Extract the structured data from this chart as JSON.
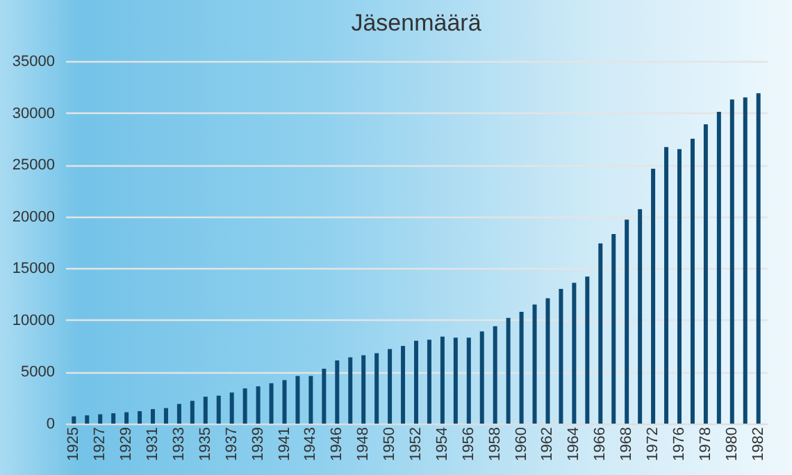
{
  "chart_data": {
    "type": "bar",
    "title": "Jäsenmäärä",
    "categories": [
      "1925",
      null,
      "1927",
      null,
      "1929",
      null,
      "1931",
      null,
      "1933",
      null,
      "1935",
      null,
      "1937",
      null,
      "1939",
      null,
      "1941",
      null,
      "1943",
      null,
      "1946",
      null,
      "1948",
      null,
      "1950",
      null,
      "1952",
      null,
      "1954",
      null,
      "1956",
      null,
      "1958",
      null,
      "1960",
      null,
      "1962",
      null,
      "1964",
      null,
      "1966",
      null,
      "1968",
      null,
      "1972",
      null,
      "1976",
      null,
      "1978",
      null,
      "1980",
      null,
      "1982"
    ],
    "values": [
      700,
      800,
      900,
      1000,
      1100,
      1200,
      1400,
      1500,
      1900,
      2200,
      2600,
      2700,
      3000,
      3400,
      3600,
      3900,
      4200,
      4600,
      4600,
      5300,
      6100,
      6400,
      6600,
      6800,
      7200,
      7500,
      8000,
      8100,
      8400,
      8300,
      8300,
      8900,
      9400,
      10200,
      10800,
      11500,
      12100,
      13000,
      13600,
      14200,
      17400,
      18300,
      19700,
      20700,
      24600,
      26700,
      26500,
      27500,
      28900,
      30100,
      31300,
      31500,
      31900
    ],
    "color": "#0d4a73",
    "ylim": [
      0,
      35000
    ],
    "yticks": [
      0,
      5000,
      10000,
      15000,
      20000,
      25000,
      30000,
      35000
    ],
    "grid": "y"
  }
}
